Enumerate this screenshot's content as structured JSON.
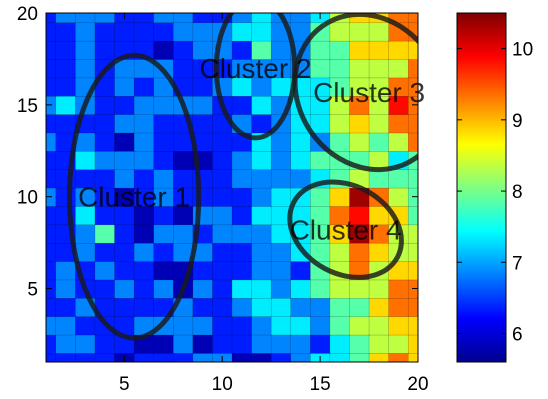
{
  "chart_data": {
    "type": "heatmap",
    "subtype": "filled-contour",
    "title": "",
    "xlabel": "",
    "ylabel": "",
    "xlim": [
      1,
      20
    ],
    "ylim": [
      1,
      20
    ],
    "x_ticks": [
      5,
      10,
      15,
      20
    ],
    "y_ticks": [
      5,
      10,
      15,
      20
    ],
    "colorbar": {
      "colormap": "jet",
      "range": [
        5.6,
        10.5
      ],
      "ticks": [
        6,
        7,
        8,
        9,
        10
      ]
    },
    "grid": false,
    "legend": "none",
    "note": "Representative value grid; rows y=1..20 (bottom to top), columns x=1..20 (left to right).",
    "z": [
      [
        6.3,
        6.3,
        6.5,
        6.3,
        5.9,
        6.1,
        6.5,
        6.1,
        6.8,
        6.6,
        6.0,
        6.0,
        6.2,
        6.6,
        7.3,
        7.1,
        8.0,
        8.9,
        9.3,
        8.8
      ],
      [
        6.2,
        6.9,
        6.8,
        6.5,
        6.4,
        6.0,
        6.0,
        6.7,
        6.0,
        6.3,
        6.3,
        7.0,
        6.8,
        7.0,
        6.5,
        7.1,
        7.9,
        8.2,
        8.1,
        9.0
      ],
      [
        6.7,
        6.7,
        6.5,
        6.4,
        6.3,
        6.6,
        6.7,
        6.6,
        6.8,
        6.4,
        6.3,
        7.0,
        7.2,
        7.2,
        6.9,
        7.7,
        8.1,
        8.3,
        8.6,
        8.8
      ],
      [
        6.2,
        6.2,
        6.7,
        6.4,
        6.5,
        6.1,
        6.1,
        6.7,
        6.1,
        6.5,
        7.0,
        7.2,
        7.1,
        6.9,
        7.0,
        7.6,
        7.6,
        8.6,
        9.4,
        9.3
      ],
      [
        6.2,
        6.6,
        6.1,
        6.5,
        6.8,
        6.1,
        6.6,
        6.0,
        6.8,
        6.2,
        7.1,
        7.3,
        6.6,
        7.2,
        7.6,
        8.2,
        8.4,
        8.3,
        9.1,
        9.3
      ],
      [
        6.1,
        6.8,
        6.5,
        6.6,
        6.1,
        6.4,
        6.0,
        6.0,
        6.2,
        6.4,
        6.3,
        6.7,
        7.0,
        6.5,
        8.0,
        8.4,
        9.3,
        8.2,
        8.7,
        9.0
      ],
      [
        6.1,
        6.5,
        6.9,
        6.5,
        6.4,
        6.7,
        6.3,
        6.7,
        6.6,
        6.5,
        6.3,
        7.0,
        6.9,
        7.4,
        7.9,
        8.5,
        9.5,
        8.7,
        8.4,
        8.2
      ],
      [
        6.4,
        6.3,
        6.7,
        7.6,
        6.3,
        5.9,
        6.6,
        6.6,
        6.4,
        6.9,
        6.7,
        6.9,
        7.3,
        7.5,
        7.6,
        8.9,
        10.2,
        9.3,
        8.2,
        8.1
      ],
      [
        6.5,
        6.5,
        7.3,
        6.3,
        6.4,
        6.0,
        6.2,
        6.0,
        6.7,
        6.8,
        6.4,
        7.3,
        7.1,
        7.3,
        7.8,
        9.3,
        9.8,
        9.0,
        8.7,
        8.0
      ],
      [
        6.7,
        6.4,
        6.7,
        6.4,
        6.0,
        6.2,
        6.7,
        6.5,
        6.4,
        6.4,
        6.5,
        6.6,
        7.2,
        7.2,
        7.8,
        8.8,
        10.3,
        9.4,
        8.1,
        7.7
      ],
      [
        6.5,
        6.5,
        6.2,
        6.5,
        6.7,
        6.4,
        6.7,
        6.5,
        6.4,
        6.5,
        6.9,
        6.7,
        6.6,
        6.7,
        7.2,
        7.7,
        8.2,
        8.0,
        8.0,
        7.9
      ],
      [
        6.3,
        6.5,
        7.1,
        6.6,
        6.6,
        6.8,
        6.3,
        6.0,
        6.0,
        6.3,
        6.9,
        7.2,
        7.0,
        7.2,
        7.7,
        7.6,
        7.8,
        8.3,
        7.5,
        7.8
      ],
      [
        6.7,
        6.4,
        6.6,
        6.4,
        5.9,
        6.7,
        6.4,
        6.4,
        6.3,
        6.4,
        6.5,
        7.1,
        6.9,
        7.5,
        7.0,
        7.8,
        8.2,
        7.7,
        8.4,
        9.1
      ],
      [
        6.3,
        6.5,
        6.5,
        6.2,
        6.6,
        6.7,
        6.1,
        6.3,
        6.5,
        6.2,
        7.0,
        6.4,
        6.7,
        7.3,
        7.5,
        8.4,
        8.6,
        8.3,
        9.3,
        9.2
      ],
      [
        6.6,
        7.1,
        6.6,
        6.3,
        6.5,
        6.6,
        6.6,
        6.8,
        6.9,
        6.3,
        6.5,
        7.1,
        7.0,
        7.5,
        7.1,
        8.1,
        9.4,
        8.5,
        9.6,
        9.1
      ],
      [
        6.4,
        6.3,
        6.8,
        6.1,
        6.8,
        6.3,
        6.7,
        6.4,
        6.5,
        6.6,
        7.1,
        6.9,
        7.2,
        7.1,
        7.3,
        7.8,
        8.2,
        8.2,
        9.2,
        9.3
      ],
      [
        6.3,
        6.4,
        6.8,
        6.1,
        6.7,
        6.6,
        6.8,
        6.2,
        6.1,
        6.4,
        7.0,
        6.9,
        6.7,
        6.9,
        7.6,
        7.8,
        8.3,
        8.3,
        8.3,
        9.2
      ],
      [
        6.4,
        6.5,
        6.8,
        6.4,
        6.1,
        6.5,
        6.0,
        6.3,
        6.9,
        6.7,
        6.4,
        8.0,
        6.6,
        6.8,
        7.7,
        7.7,
        8.8,
        8.7,
        8.6,
        8.6
      ],
      [
        6.4,
        6.2,
        6.8,
        6.4,
        6.2,
        6.2,
        6.5,
        7.0,
        6.6,
        6.7,
        7.1,
        7.4,
        6.9,
        7.0,
        7.7,
        8.3,
        8.3,
        8.5,
        9.1,
        9.3
      ],
      [
        6.4,
        6.6,
        6.7,
        6.6,
        6.3,
        6.2,
        6.8,
        6.6,
        6.2,
        6.1,
        7.0,
        7.1,
        6.8,
        6.8,
        7.5,
        8.2,
        8.9,
        9.0,
        9.5,
        9.3
      ]
    ],
    "annotations": [
      {
        "label": "Cluster 1",
        "center": [
          5.5,
          10
        ],
        "radii": [
          3.3,
          7.7
        ],
        "angle": 0
      },
      {
        "label": "Cluster 2",
        "center": [
          11.7,
          17
        ],
        "radii": [
          2.0,
          3.8
        ],
        "angle": 0
      },
      {
        "label": "Cluster 3",
        "center": [
          17.5,
          15.7
        ],
        "radii": [
          3.6,
          4.4
        ],
        "angle": 35
      },
      {
        "label": "Cluster 4",
        "center": [
          16.3,
          8.2
        ],
        "radii": [
          3.0,
          2.4
        ],
        "angle": -28
      }
    ]
  }
}
